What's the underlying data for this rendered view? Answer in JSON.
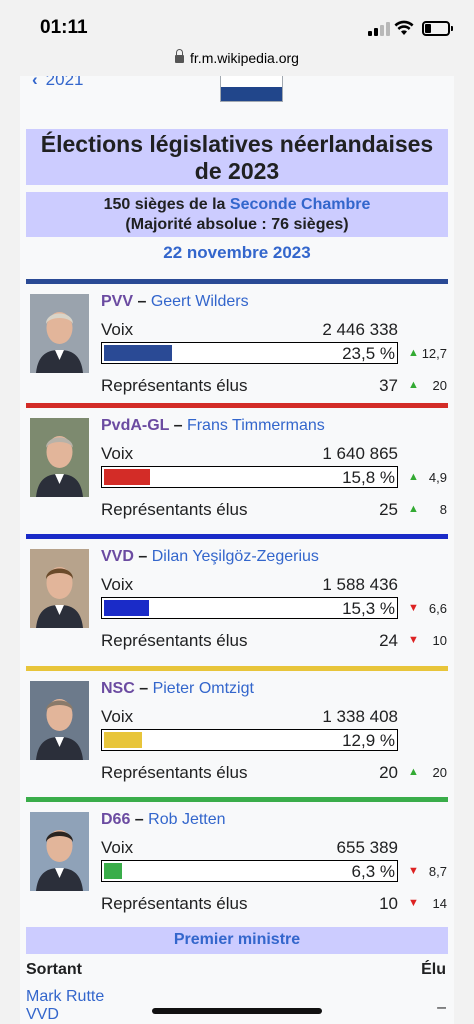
{
  "status": {
    "time": "01:11"
  },
  "browser": {
    "url": "fr.m.wikipedia.org"
  },
  "nav": {
    "prev_year": "2021"
  },
  "infobox": {
    "title": "Élections législatives néerlandaises de 2023",
    "seats_line_prefix": "150 sièges de la ",
    "seats_link": "Seconde Chambre",
    "majority": "(Majorité absolue : 76 sièges)",
    "date": "22 novembre 2023"
  },
  "labels": {
    "votes": "Voix",
    "elected": "Représentants élus"
  },
  "parties": [
    {
      "abbr": "PVV",
      "leader": "Geert Wilders",
      "votes": "2 446 338",
      "pct": "23,5 %",
      "pct_value": 23.5,
      "pct_delta": "12,7",
      "pct_dir": "up",
      "seats": "37",
      "seat_delta": "20",
      "seat_dir": "up",
      "color": "#2a4a95"
    },
    {
      "abbr": "PvdA-GL",
      "leader": "Frans Timmermans",
      "votes": "1 640 865",
      "pct": "15,8 %",
      "pct_value": 15.8,
      "pct_delta": "4,9",
      "pct_dir": "up",
      "seats": "25",
      "seat_delta": "8",
      "seat_dir": "up",
      "color": "#d32c27"
    },
    {
      "abbr": "VVD",
      "leader": "Dilan Yeşilgöz-Zegerius",
      "votes": "1 588 436",
      "pct": "15,3 %",
      "pct_value": 15.3,
      "pct_delta": "6,6",
      "pct_dir": "down",
      "seats": "24",
      "seat_delta": "10",
      "seat_dir": "down",
      "color": "#1a2bc8"
    },
    {
      "abbr": "NSC",
      "leader": "Pieter Omtzigt",
      "votes": "1 338 408",
      "pct": "12,9 %",
      "pct_value": 12.9,
      "pct_delta": "",
      "pct_dir": "",
      "seats": "20",
      "seat_delta": "20",
      "seat_dir": "up",
      "color": "#e8c53a"
    },
    {
      "abbr": "D66",
      "leader": "Rob Jetten",
      "votes": "655 389",
      "pct": "6,3 %",
      "pct_value": 6.3,
      "pct_delta": "8,7",
      "pct_dir": "down",
      "seats": "10",
      "seat_delta": "14",
      "seat_dir": "down",
      "color": "#3aad4a"
    }
  ],
  "pm": {
    "header": "Premier ministre",
    "outgoing_label": "Sortant",
    "elected_label": "Élu",
    "outgoing_name": "Mark Rutte",
    "outgoing_party": "VVD",
    "elected_value": "–"
  }
}
